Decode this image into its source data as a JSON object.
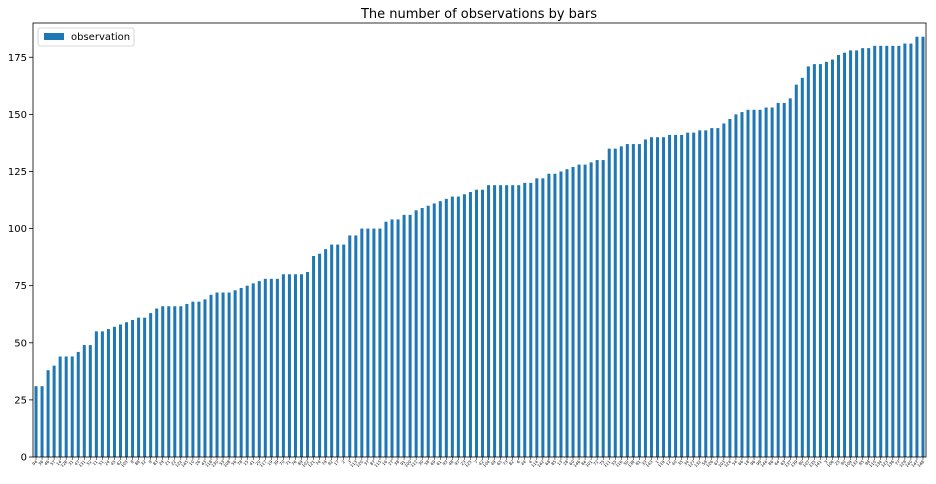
{
  "chart_data": {
    "type": "bar",
    "title": "The number of observations by bars",
    "xlabel": "",
    "ylabel": "",
    "ylim": [
      0,
      190
    ],
    "yticks": [
      0,
      25,
      50,
      75,
      100,
      125,
      150,
      175
    ],
    "grid": false,
    "legend_position": "top-left",
    "series": [
      {
        "name": "observation",
        "color": "#1f77b4",
        "values": [
          31,
          31,
          38,
          40,
          44,
          44,
          44,
          46,
          49,
          49,
          55,
          55,
          56,
          57,
          58,
          59,
          60,
          61,
          61,
          63,
          65,
          66,
          66,
          66,
          66,
          67,
          68,
          68,
          69,
          71,
          72,
          72,
          72,
          73,
          74,
          75,
          76,
          77,
          78,
          78,
          78,
          80,
          80,
          80,
          80,
          81,
          88,
          89,
          91,
          93,
          93,
          93,
          97,
          97,
          100,
          100,
          100,
          100,
          103,
          104,
          104,
          106,
          106,
          108,
          109,
          110,
          111,
          112,
          113,
          114,
          114,
          115,
          116,
          117,
          117,
          119,
          119,
          119,
          119,
          119,
          119,
          120,
          120,
          122,
          122,
          124,
          124,
          125,
          126,
          127,
          128,
          128,
          129,
          130,
          130,
          135,
          135,
          136,
          137,
          137,
          137,
          139,
          140,
          140,
          140,
          141,
          141,
          141,
          142,
          142,
          143,
          143,
          144,
          144,
          146,
          148,
          150,
          151,
          152,
          152,
          152,
          153,
          153,
          155,
          155,
          157,
          163,
          166,
          171,
          172,
          172,
          173,
          174,
          176,
          177,
          178,
          178,
          179,
          179,
          180,
          180,
          180,
          180,
          180,
          181,
          181,
          184,
          184
        ]
      }
    ],
    "categories": [
      "94",
      "36",
      "46",
      "57",
      "14",
      "128",
      "31",
      "47",
      "131",
      "52",
      "11",
      "51",
      "24",
      "45",
      "62",
      "105",
      "8",
      "88",
      "32",
      "9",
      "83",
      "29",
      "21",
      "22",
      "122",
      "145",
      "10",
      "26",
      "43",
      "118",
      "130",
      "53",
      "108",
      "56",
      "78",
      "15",
      "41",
      "20",
      "117",
      "19",
      "39",
      "70",
      "71",
      "76",
      "89",
      "102",
      "121",
      "74",
      "79",
      "92",
      "17",
      "2",
      "3",
      "113",
      "120",
      "37",
      "87",
      "115",
      "16",
      "27",
      "38",
      "91",
      "100",
      "112",
      "30",
      "58",
      "69",
      "61",
      "93",
      "48",
      "97",
      "23",
      "125",
      "7",
      "42",
      "104",
      "49",
      "65",
      "73",
      "82",
      "6",
      "44",
      "4",
      "114",
      "142",
      "68",
      "85",
      "13",
      "28",
      "60",
      "146",
      "84",
      "101",
      "72",
      "75",
      "111",
      "55",
      "116",
      "50",
      "138",
      "81",
      "33",
      "143",
      "1",
      "119",
      "12",
      "40",
      "35",
      "34",
      "127",
      "132",
      "59",
      "126",
      "67",
      "103",
      "124",
      "54",
      "66",
      "18",
      "96",
      "99",
      "144",
      "86",
      "64",
      "63",
      "137",
      "139",
      "80",
      "107",
      "135",
      "141",
      "5",
      "106",
      "25",
      "90",
      "109",
      "133",
      "95",
      "98",
      "110",
      "134",
      "123",
      "136",
      "77",
      "129",
      "140",
      "147",
      "148"
    ]
  }
}
